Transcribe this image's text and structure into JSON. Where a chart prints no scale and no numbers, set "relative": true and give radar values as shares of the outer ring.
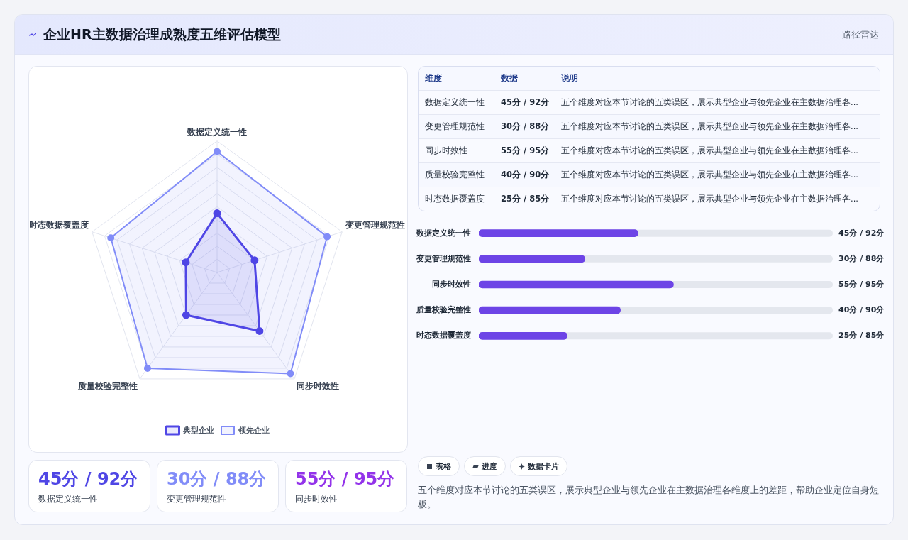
{
  "chart_data": [
    {
      "type": "other",
      "title": "企业HR主数据治理成熟度五维评估模型",
      "subtitle": "路径雷达"
    },
    {
      "type": "radar",
      "relative": true,
      "categories": [
        "数据定义统一性",
        "变更管理规范性",
        "同步时效性",
        "质量校验完整性",
        "时态数据覆盖度"
      ],
      "series": [
        {
          "name": "典型企业",
          "color": "#4f46e5",
          "values": [
            0.45,
            0.3,
            0.55,
            0.4,
            0.25
          ]
        },
        {
          "name": "领先企业",
          "color": "#818cf8",
          "values": [
            0.92,
            0.88,
            0.95,
            0.9,
            0.85
          ]
        }
      ],
      "grid": true,
      "legend": "bottom",
      "marker": "circle"
    },
    {
      "type": "other",
      "annotations": [
        "维度",
        "数据",
        "说明",
        "数据定义统一性",
        "45分 / 92分",
        "五个维度对应本节讨论的五类误区，展示典型企业与领先企业在主数据治理各...",
        "变更管理规范性",
        "30分 / 88分",
        "五个维度对应本节讨论的五类误区，展示典型企业与领先企业在主数据治理各...",
        "同步时效性",
        "55分 / 95分",
        "五个维度对应本节讨论的五类误区，展示典型企业与领先企业在主数据治理各...",
        "质量校验完整性",
        "40分 / 90分",
        "五个维度对应本节讨论的五类误区，展示典型企业与领先企业在主数据治理各...",
        "时态数据覆盖度",
        "25分 / 85分",
        "五个维度对应本节讨论的五类误区，展示典型企业与领先企业在主数据治理各..."
      ]
    },
    {
      "type": "bar",
      "orientation": "horizontal",
      "categories": [
        "数据定义统一性",
        "变更管理规范性",
        "同步时效性",
        "质量校验完整性",
        "时态数据覆盖度"
      ],
      "series": [
        {
          "color": "#6d44e6",
          "values": [
            45,
            30,
            55,
            40,
            25
          ],
          "value_labels": [
            "45分 / 92分",
            "30分 / 88分",
            "55分 / 95分",
            "40分 / 90分",
            "25分 / 85分"
          ]
        }
      ],
      "xlim": [
        0,
        100
      ],
      "tick_labels": "y"
    },
    {
      "type": "other",
      "colors": [
        "#4f46e5",
        "#818cf8",
        "#9333ea"
      ],
      "annotations": [
        "45分 / 92分",
        "数据定义统一性",
        "30分 / 88分",
        "变更管理规范性",
        "55分 / 95分",
        "同步时效性",
        "表格",
        "进度",
        "数据卡片",
        "五个维度对应本节讨论的五类误区，展示典型企业与领先企业在主数据治理各维度上的差距，帮助企业定位自身短板。"
      ]
    }
  ]
}
